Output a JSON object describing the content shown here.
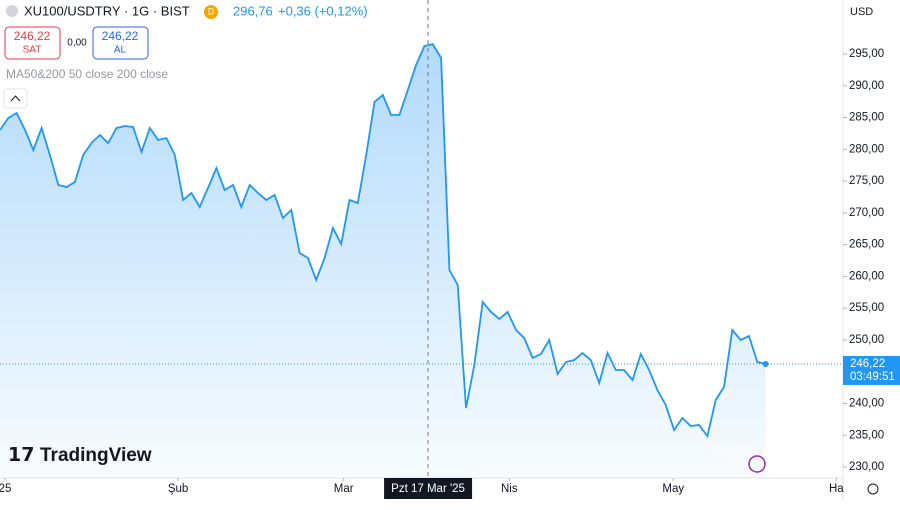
{
  "header": {
    "symbol": "XU100/USDTRY · 1G · BIST",
    "badge": "D",
    "price": "296,76",
    "change": "+0,36 (+0,12%)",
    "sell_price": "246,22",
    "sell": "SAT",
    "spread": "0,00",
    "buy_price": "246,22",
    "buy": "AL",
    "indicator": "MA50&200 50 close 200 close",
    "currency": "USD",
    "brand": "TradingView"
  },
  "chart_data": {
    "type": "area",
    "color": "#2196f3",
    "values": [
      283.04,
      284.93,
      285.71,
      283.04,
      279.89,
      283.35,
      279.1,
      274.38,
      274.07,
      274.86,
      279.1,
      281.0,
      282.25,
      281.0,
      283.35,
      283.67,
      283.51,
      279.58,
      283.35,
      281.47,
      281.78,
      279.1,
      272.02,
      273.12,
      270.92,
      273.91,
      277.06,
      273.6,
      274.38,
      270.92,
      274.38,
      273.12,
      272.02,
      272.81,
      269.19,
      270.45,
      263.68,
      262.89,
      259.43,
      262.89,
      267.61,
      265.1,
      272.02,
      271.55,
      279.1,
      287.45,
      288.55,
      285.4,
      285.4,
      289.33,
      293.27,
      296.26,
      296.57,
      294.37,
      261.0,
      258.64,
      239.29,
      246.05,
      255.97,
      254.4,
      253.29,
      254.4,
      251.56,
      250.3,
      247.16,
      247.79,
      249.99,
      244.64,
      246.53,
      246.84,
      247.94,
      246.84,
      243.22,
      247.94,
      245.27,
      245.27,
      243.69,
      247.79,
      245.27,
      242.12,
      239.76,
      235.83,
      237.71,
      236.45,
      236.61,
      234.88,
      240.55,
      242.59,
      251.56,
      249.99,
      250.62,
      246.53,
      246.22
    ],
    "xlim": [
      0,
      101.3
    ],
    "xticks": [
      {
        "value": 0.6,
        "label": "25"
      },
      {
        "value": 21.4,
        "label": "Şub"
      },
      {
        "value": 41.3,
        "label": "Mar"
      },
      {
        "value": 61.2,
        "label": "Nis"
      },
      {
        "value": 80.9,
        "label": "May"
      },
      {
        "value": 100.5,
        "label": "Ha"
      }
    ],
    "ylim": [
      228.27,
      303.5
    ],
    "yticks": [
      {
        "value": 230,
        "label": "230,00"
      },
      {
        "value": 235,
        "label": "235,00"
      },
      {
        "value": 240,
        "label": "240,00"
      },
      {
        "value": 245,
        "label": "245,00"
      },
      {
        "value": 250,
        "label": "250,00"
      },
      {
        "value": 255,
        "label": "255,00"
      },
      {
        "value": 260,
        "label": "260,00"
      },
      {
        "value": 265,
        "label": "265,00"
      },
      {
        "value": 270,
        "label": "270,00"
      },
      {
        "value": 275,
        "label": "275,00"
      },
      {
        "value": 280,
        "label": "280,00"
      },
      {
        "value": 285,
        "label": "285,00"
      },
      {
        "value": 290,
        "label": "290,00"
      },
      {
        "value": 295,
        "label": "295,00"
      }
    ],
    "last_label": "246,22",
    "countdown": "03:49:51",
    "crosshair": {
      "value": 51.44,
      "label": "Pzt 17 Mar '25"
    }
  }
}
